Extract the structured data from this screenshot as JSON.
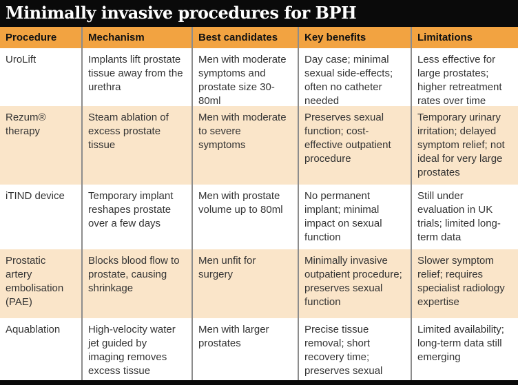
{
  "title": "Minimally invasive procedures for BPH",
  "colors": {
    "title_bg": "#0a0a0a",
    "header_bg": "#f2a341",
    "row_alt_bg": "#fae5c9",
    "divider": "#8c8c8c",
    "text": "#333333"
  },
  "chart_data": {
    "type": "table",
    "title": "Minimally invasive procedures for BPH",
    "columns": [
      "Procedure",
      "Mechanism",
      "Best candidates",
      "Key benefits",
      "Limitations"
    ],
    "rows": [
      [
        "UroLift",
        "Implants lift prostate tissue away from the urethra",
        "Men with moderate symptoms and prostate size 30-80ml",
        "Day case; minimal sexual side-effects; often no catheter needed",
        "Less effective for large prostates; higher retreatment rates over time"
      ],
      [
        "Rezum® therapy",
        "Steam ablation of excess prostate tissue",
        "Men with moderate to severe symptoms",
        "Preserves sexual function; cost-effective outpatient procedure",
        "Temporary urinary irritation; delayed symptom relief; not ideal for very large prostates"
      ],
      [
        "iTIND device",
        "Temporary implant reshapes prostate over a few days",
        "Men with prostate volume up to 80ml",
        "No permanent implant; minimal impact on sexual function",
        "Still under evaluation in UK trials; limited long-term data"
      ],
      [
        "Prostatic artery embolisation (PAE)",
        "Blocks blood flow to prostate, causing shrinkage",
        "Men unfit for surgery",
        "Minimally invasive outpatient procedure; preserves sexual function",
        "Slower symptom relief; requires specialist radiology expertise"
      ],
      [
        "Aquablation",
        "High-velocity water jet guided by imaging removes excess tissue",
        "Men with larger prostates",
        "Precise tissue removal; short recovery time; preserves sexual function",
        "Limited availability; long-term data still emerging"
      ]
    ]
  }
}
